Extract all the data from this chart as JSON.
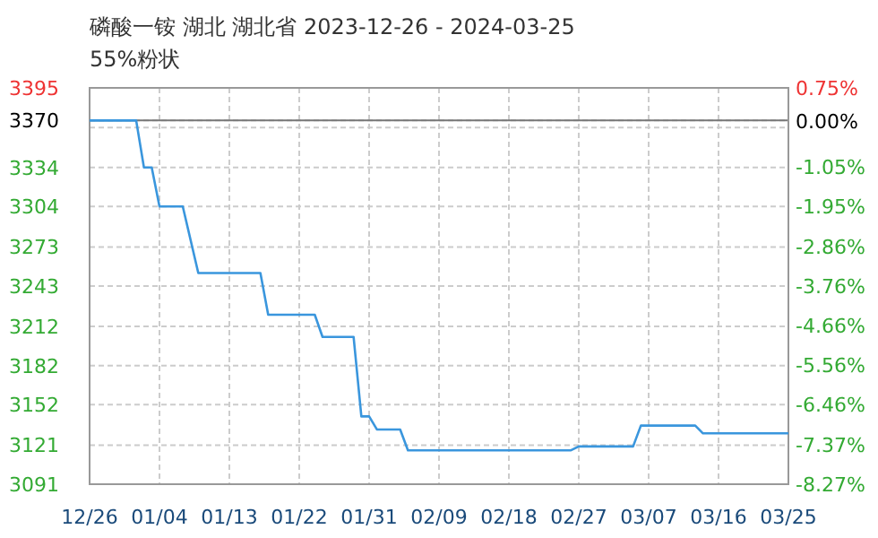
{
  "chart_data": {
    "type": "line",
    "title": "磷酸一铵 湖北 湖北省 2023-12-26 - 2024-03-25",
    "subtitle": "55%粉状",
    "x": [
      "2023-12-26",
      "2024-01-01",
      "2024-01-02",
      "2024-01-03",
      "2024-01-04",
      "2024-01-07",
      "2024-01-09",
      "2024-01-17",
      "2024-01-18",
      "2024-01-24",
      "2024-01-25",
      "2024-01-29",
      "2024-01-30",
      "2024-01-31",
      "2024-02-01",
      "2024-02-04",
      "2024-02-05",
      "2024-02-26",
      "2024-02-27",
      "2024-03-05",
      "2024-03-06",
      "2024-03-13",
      "2024-03-14",
      "2024-03-25"
    ],
    "series": [
      {
        "color": "#3a96dd",
        "values": [
          3370,
          3370,
          3334,
          3334,
          3304,
          3304,
          3253,
          3253,
          3221,
          3221,
          3204,
          3204,
          3143,
          3143,
          3133,
          3133,
          3117,
          3117,
          3120,
          3120,
          3136,
          3136,
          3130,
          3130
        ]
      }
    ],
    "xlim": [
      "2023-12-26",
      "2024-03-25"
    ],
    "xticks": [
      {
        "value": "2023-12-26",
        "label": "12/26"
      },
      {
        "value": "2024-01-04",
        "label": "01/04"
      },
      {
        "value": "2024-01-13",
        "label": "01/13"
      },
      {
        "value": "2024-01-22",
        "label": "01/22"
      },
      {
        "value": "2024-01-31",
        "label": "01/31"
      },
      {
        "value": "2024-02-09",
        "label": "02/09"
      },
      {
        "value": "2024-02-18",
        "label": "02/18"
      },
      {
        "value": "2024-02-27",
        "label": "02/27"
      },
      {
        "value": "2024-03-07",
        "label": "03/07"
      },
      {
        "value": "2024-03-16",
        "label": "03/16"
      },
      {
        "value": "2024-03-25",
        "label": "03/25"
      }
    ],
    "ylim": [
      3091,
      3395
    ],
    "yticks": [
      {
        "value": 3091,
        "label": "3091"
      },
      {
        "value": 3121,
        "label": "3121"
      },
      {
        "value": 3152,
        "label": "3152"
      },
      {
        "value": 3182,
        "label": "3182"
      },
      {
        "value": 3212,
        "label": "3212"
      },
      {
        "value": 3243,
        "label": "3243"
      },
      {
        "value": 3273,
        "label": "3273"
      },
      {
        "value": 3304,
        "label": "3304"
      },
      {
        "value": 3334,
        "label": "3334"
      },
      {
        "value": 3364.6,
        "label": null
      },
      {
        "value": 3370,
        "label": "3370"
      },
      {
        "value": 3395,
        "label": "3395"
      }
    ],
    "y2lim": [
      -8.27,
      0.75
    ],
    "y2ticks": [
      {
        "value": -8.27,
        "label": "-8.27%"
      },
      {
        "value": -7.37,
        "label": "-7.37%"
      },
      {
        "value": -6.46,
        "label": "-6.46%"
      },
      {
        "value": -5.56,
        "label": "-5.56%"
      },
      {
        "value": -4.66,
        "label": "-4.66%"
      },
      {
        "value": -3.76,
        "label": "-3.76%"
      },
      {
        "value": -2.86,
        "label": "-2.86%"
      },
      {
        "value": -1.95,
        "label": "-1.95%"
      },
      {
        "value": -1.05,
        "label": "-1.05%"
      },
      {
        "value": 0,
        "label": "0.00%"
      },
      {
        "value": 0.75,
        "label": "0.75%"
      }
    ],
    "ref_lines": [
      {
        "axis": "y",
        "value": 3370,
        "color": "#777777"
      }
    ],
    "grid": true
  }
}
